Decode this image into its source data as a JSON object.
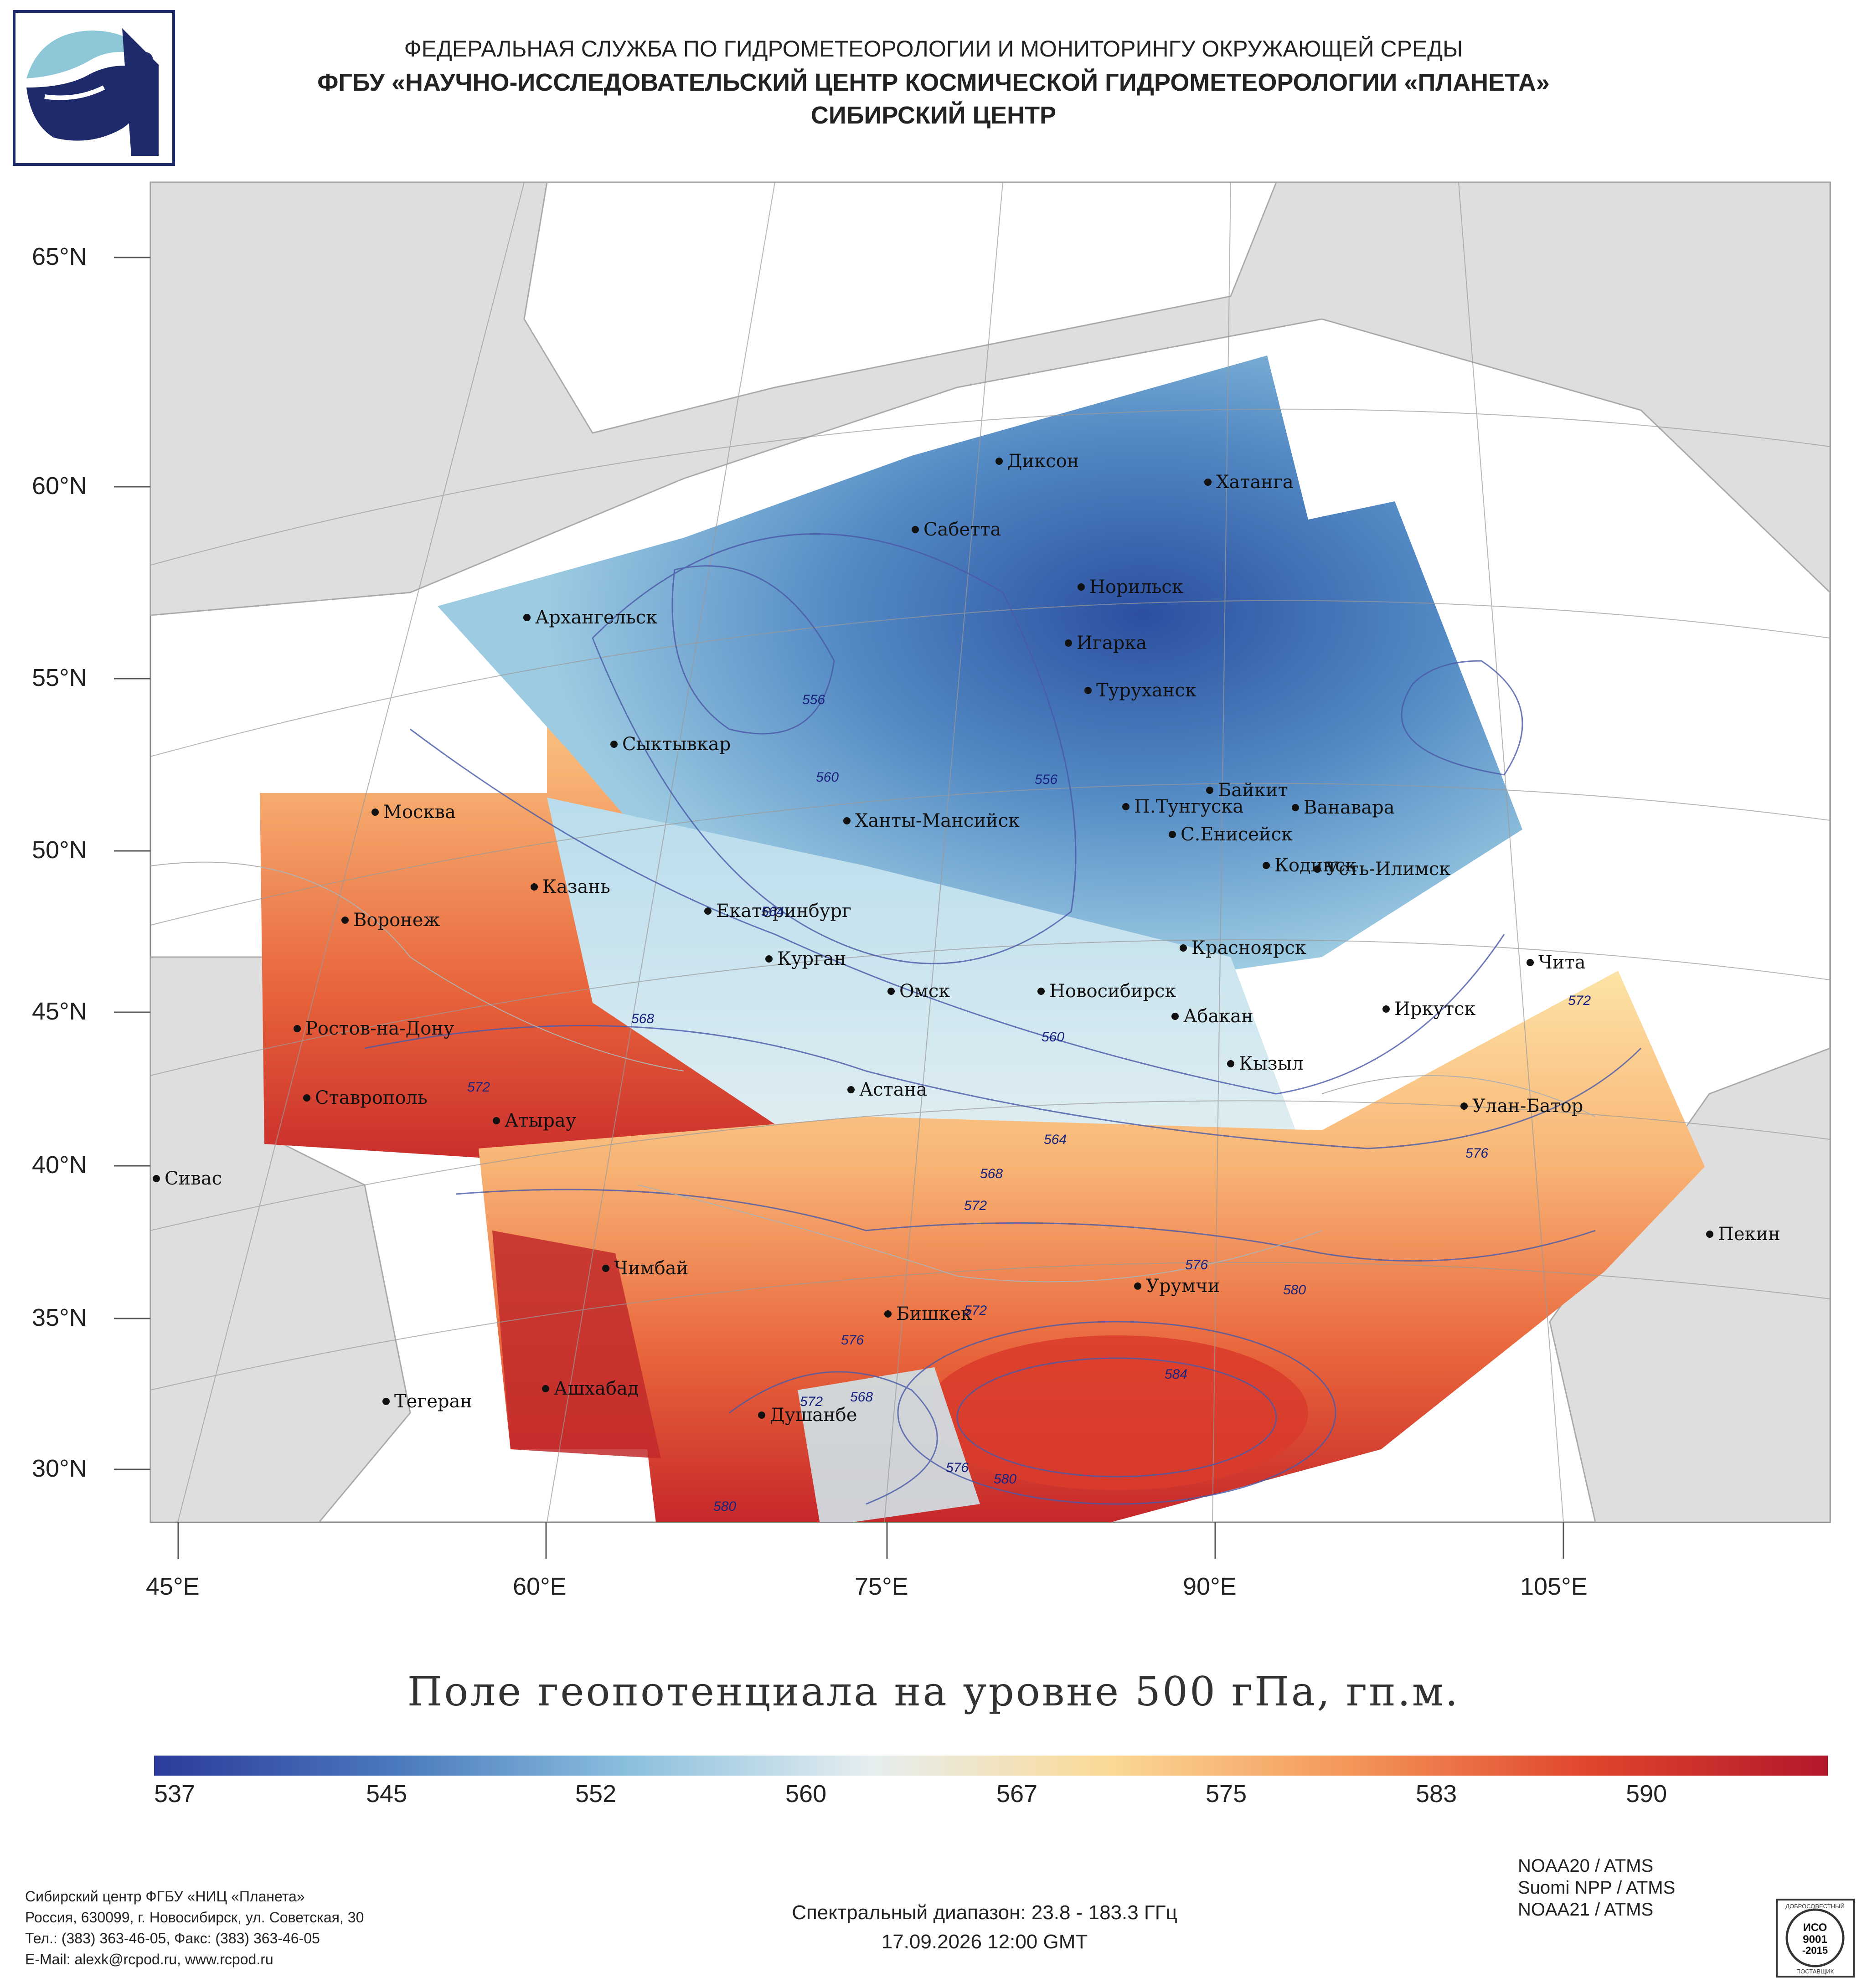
{
  "header": {
    "line1": "ФЕДЕРАЛЬНАЯ СЛУЖБА ПО ГИДРОМЕТЕОРОЛОГИИ И МОНИТОРИНГУ ОКРУЖАЮЩЕЙ СРЕДЫ",
    "line2": "ФГБУ «НАУЧНО-ИССЛЕДОВАТЕЛЬСКИЙ ЦЕНТР КОСМИЧЕСКОЙ ГИДРОМЕТЕОРОЛОГИИ «ПЛАНЕТА»",
    "line3": "СИБИРСКИЙ ЦЕНТР"
  },
  "map": {
    "lat_labels": [
      "65°N",
      "60°N",
      "55°N",
      "50°N",
      "45°N",
      "40°N",
      "35°N",
      "30°N"
    ],
    "lon_labels": [
      "45°E",
      "60°E",
      "75°E",
      "90°E",
      "105°E"
    ],
    "cities": [
      "Диксон",
      "Хатанга",
      "Сабетта",
      "Норильск",
      "Архангельск",
      "Игарка",
      "Туруханск",
      "Сыктывкар",
      "Байкит",
      "Москва",
      "П.Тунгуска",
      "Ванавара",
      "Ханты-Мансийск",
      "С.Енисейск",
      "Кодинск",
      "Усть-Илимск",
      "Казань",
      "Екатеринбург",
      "Воронеж",
      "Красноярск",
      "Курган",
      "Чита",
      "Омск",
      "Новосибирск",
      "Иркутск",
      "Абакан",
      "Ростов-на-Дону",
      "Кызыл",
      "Астана",
      "Ставрополь",
      "Улан-Батор",
      "Атырау",
      "Сивас",
      "Пекин",
      "Чимбай",
      "Урумчи",
      "Бишкек",
      "Ашхабад",
      "Тегеран",
      "Душанбе"
    ],
    "contour_labels": [
      "556",
      "560",
      "556",
      "564",
      "568",
      "572",
      "560",
      "564",
      "568",
      "572",
      "576",
      "580",
      "572",
      "576",
      "572",
      "568",
      "584",
      "576",
      "580",
      "580",
      "572",
      "576"
    ]
  },
  "title": "Поле геопотенциала на уровне 500 гПа, гп.м.",
  "colorbar": {
    "ticks": [
      "537",
      "545",
      "552",
      "560",
      "567",
      "575",
      "583",
      "590"
    ],
    "colors": [
      "#2c3b9a",
      "#4a78bd",
      "#8cc0de",
      "#e6eef0",
      "#fbd995",
      "#f4965a",
      "#e0452c",
      "#b2182b"
    ]
  },
  "footer": {
    "org": "Сибирский центр ФГБУ «НИЦ «Планета»",
    "address": "Россия, 630099, г. Новосибирск, ул. Советская, 30",
    "phone": "Тел.: (383) 363-46-05, Факс: (383) 363-46-05",
    "email": "E-Mail: alexk@rcpod.ru, www.rcpod.ru",
    "spectral": "Спектральный диапазон: 23.8 - 183.3 ГГц",
    "datetime": "17.09.2026 12:00 GMT",
    "satellites": [
      "NOAA20 / ATMS",
      "Suomi NPP / ATMS",
      "NOAA21 / ATMS"
    ]
  },
  "iso_badge": {
    "top": "ДОБРОСОВЕСТНЫЙ",
    "line1": "ИСО",
    "line2": "9001",
    "line3": "-2015",
    "bottom": "ПОСТАВЩИК"
  }
}
